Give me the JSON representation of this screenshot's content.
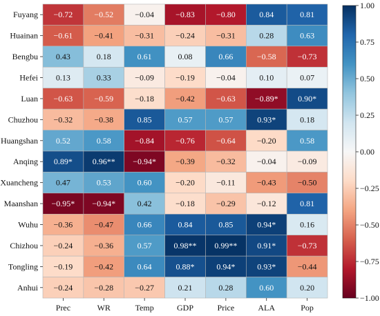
{
  "chart_data": {
    "type": "heatmap",
    "title": "",
    "xlabel": "",
    "ylabel": "",
    "columns": [
      "Prec",
      "WR",
      "Temp",
      "GDP",
      "Price",
      "ALA",
      "Pop"
    ],
    "rows": [
      "Fuyang",
      "Huainan",
      "Bengbu",
      "Hefei",
      "Luan",
      "Chuzhou",
      "Huangshan",
      "Anqing",
      "Xuancheng",
      "Maanshan",
      "Wuhu",
      "Chizhou",
      "Tongling",
      "Anhui"
    ],
    "values": [
      [
        -0.72,
        -0.52,
        -0.04,
        -0.83,
        -0.8,
        0.84,
        0.81
      ],
      [
        -0.61,
        -0.41,
        -0.31,
        -0.24,
        -0.31,
        0.28,
        0.63
      ],
      [
        0.43,
        0.18,
        0.61,
        0.08,
        0.66,
        -0.58,
        -0.73
      ],
      [
        0.13,
        0.33,
        -0.09,
        -0.19,
        -0.04,
        0.1,
        0.07
      ],
      [
        -0.63,
        -0.59,
        -0.18,
        -0.42,
        -0.63,
        -0.89,
        0.9
      ],
      [
        -0.32,
        -0.38,
        0.85,
        0.57,
        0.57,
        0.93,
        0.18
      ],
      [
        0.52,
        0.58,
        -0.84,
        -0.76,
        -0.64,
        -0.2,
        0.58
      ],
      [
        0.89,
        0.96,
        -0.94,
        -0.39,
        -0.32,
        -0.04,
        -0.09
      ],
      [
        0.47,
        0.53,
        0.6,
        -0.2,
        -0.11,
        -0.43,
        -0.5
      ],
      [
        -0.95,
        -0.94,
        0.42,
        -0.18,
        -0.29,
        -0.12,
        0.81
      ],
      [
        -0.36,
        -0.47,
        0.66,
        0.84,
        0.85,
        0.94,
        0.16
      ],
      [
        -0.24,
        -0.36,
        0.57,
        0.98,
        0.99,
        0.91,
        -0.73
      ],
      [
        -0.19,
        -0.42,
        0.64,
        0.88,
        0.94,
        0.93,
        -0.44
      ],
      [
        -0.24,
        -0.28,
        -0.27,
        0.21,
        0.28,
        0.6,
        0.2
      ]
    ],
    "labels": [
      [
        "−0.72",
        "−0.52",
        "−0.04",
        "−0.83",
        "−0.80",
        "0.84",
        "0.81"
      ],
      [
        "−0.61",
        "−0.41",
        "−0.31",
        "−0.24",
        "−0.31",
        "0.28",
        "0.63"
      ],
      [
        "0.43",
        "0.18",
        "0.61",
        "0.08",
        "0.66",
        "−0.58",
        "−0.73"
      ],
      [
        "0.13",
        "0.33",
        "−0.09",
        "−0.19",
        "−0.04",
        "0.10",
        "0.07"
      ],
      [
        "−0.63",
        "−0.59",
        "−0.18",
        "−0.42",
        "−0.63",
        "−0.89*",
        "0.90*"
      ],
      [
        "−0.32",
        "−0.38",
        "0.85",
        "0.57",
        "0.57",
        "0.93*",
        "0.18"
      ],
      [
        "0.52",
        "0.58",
        "−0.84",
        "−0.76",
        "−0.64",
        "−0.20",
        "0.58"
      ],
      [
        "0.89*",
        "0.96**",
        "−0.94*",
        "−0.39",
        "−0.32",
        "−0.04",
        "−0.09"
      ],
      [
        "0.47",
        "0.53",
        "0.60",
        "−0.20",
        "−0.11",
        "−0.43",
        "−0.50"
      ],
      [
        "−0.95*",
        "−0.94*",
        "0.42",
        "−0.18",
        "−0.29",
        "−0.12",
        "0.81"
      ],
      [
        "−0.36",
        "−0.47",
        "0.66",
        "0.84",
        "0.85",
        "0.94*",
        "0.16"
      ],
      [
        "−0.24",
        "−0.36",
        "0.57",
        "0.98**",
        "0.99**",
        "0.91*",
        "−0.73"
      ],
      [
        "−0.19",
        "−0.42",
        "0.64",
        "0.88*",
        "0.94*",
        "0.93*",
        "−0.44"
      ],
      [
        "−0.24",
        "−0.28",
        "−0.27",
        "0.21",
        "0.28",
        "0.60",
        "0.20"
      ]
    ],
    "colorbar": {
      "vmin": -1.0,
      "vmax": 1.0,
      "ticks": [
        -1.0,
        -0.75,
        -0.5,
        -0.25,
        0.0,
        0.25,
        0.5,
        0.75,
        1.0
      ],
      "tick_labels": [
        "−1.00",
        "−0.75",
        "−0.50",
        "−0.25",
        "0.00",
        "0.25",
        "0.50",
        "0.75",
        "1.00"
      ],
      "colormap": "RdBu"
    },
    "grid": true,
    "legend": "right"
  }
}
